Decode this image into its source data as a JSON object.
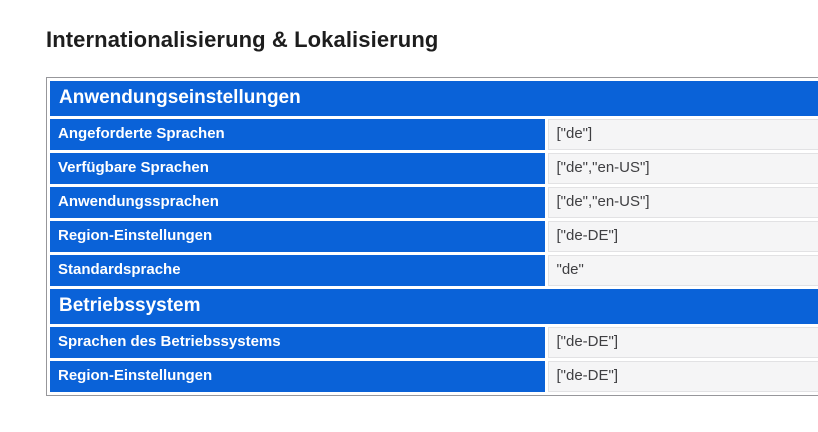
{
  "page": {
    "title": "Internationalisierung & Lokalisierung"
  },
  "settings_table": {
    "sections": [
      {
        "header": "Anwendungseinstellungen",
        "rows": [
          {
            "label": "Angeforderte Sprachen",
            "value": "[\"de\"]"
          },
          {
            "label": "Verfügbare Sprachen",
            "value": "[\"de\",\"en-US\"]"
          },
          {
            "label": "Anwendungssprachen",
            "value": "[\"de\",\"en-US\"]"
          },
          {
            "label": "Region-Einstellungen",
            "value": "[\"de-DE\"]"
          },
          {
            "label": "Standardsprache",
            "value": "\"de\""
          }
        ]
      },
      {
        "header": "Betriebssystem",
        "rows": [
          {
            "label": "Sprachen des Betriebssystems",
            "value": "[\"de-DE\"]"
          },
          {
            "label": "Region-Einstellungen",
            "value": "[\"de-DE\"]"
          }
        ]
      }
    ]
  },
  "colors": {
    "accent_blue": "#0a62d8",
    "header_text": "#ffffff",
    "title_text": "#1d1d1d",
    "value_text": "#3f3f42",
    "value_cell_bg": "#f5f5f6",
    "table_border": "#97979b"
  }
}
